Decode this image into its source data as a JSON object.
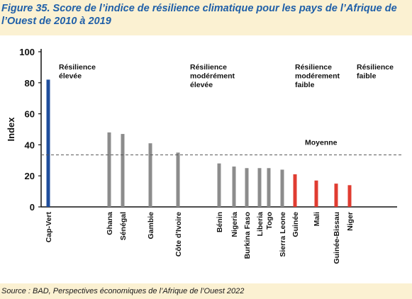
{
  "figure": {
    "title": "Figure 35. Score de l’indice de résilience climatique pour les pays de l’Afrique de l’Ouest de 2010 à 2019",
    "source": "Source : BAD, Perspectives économiques de l’Afrique de l’Ouest 2022"
  },
  "chart_data": {
    "type": "bar",
    "ylabel": "Index",
    "xlabel": "",
    "ylim": [
      0,
      100
    ],
    "yticks": [
      0,
      20,
      40,
      60,
      80,
      100
    ],
    "grid": false,
    "categories": [
      "Cap-Vert",
      "Ghana",
      "Sénégal",
      "Gambie",
      "Côte d'Ivoire",
      "Bénin",
      "Nigeria",
      "Burkina Faso",
      "Liberia",
      "Togo",
      "Sierra Leone",
      "Guinée",
      "Mali",
      "Guinée-Bissau",
      "Niger"
    ],
    "values": [
      82,
      48,
      47,
      41,
      35,
      28,
      26,
      25,
      25,
      25,
      24,
      21,
      17,
      15,
      14
    ],
    "bar_colors": [
      "#1f4e9c",
      "#8c8c8c",
      "#8c8c8c",
      "#8c8c8c",
      "#8c8c8c",
      "#8c8c8c",
      "#8c8c8c",
      "#8c8c8c",
      "#8c8c8c",
      "#8c8c8c",
      "#8c8c8c",
      "#e03c31",
      "#e03c31",
      "#e03c31",
      "#e03c31"
    ],
    "reference_line": {
      "label": "Moyenne",
      "value": 33.5
    },
    "annotations": [
      {
        "lines": [
          "Résilience",
          "élevée"
        ]
      },
      {
        "lines": [
          "Résilience",
          "modérément",
          "élevée"
        ]
      },
      {
        "lines": [
          "Résilience",
          "modérement",
          "faible"
        ]
      },
      {
        "lines": [
          "Résilience",
          "faible"
        ]
      }
    ]
  }
}
